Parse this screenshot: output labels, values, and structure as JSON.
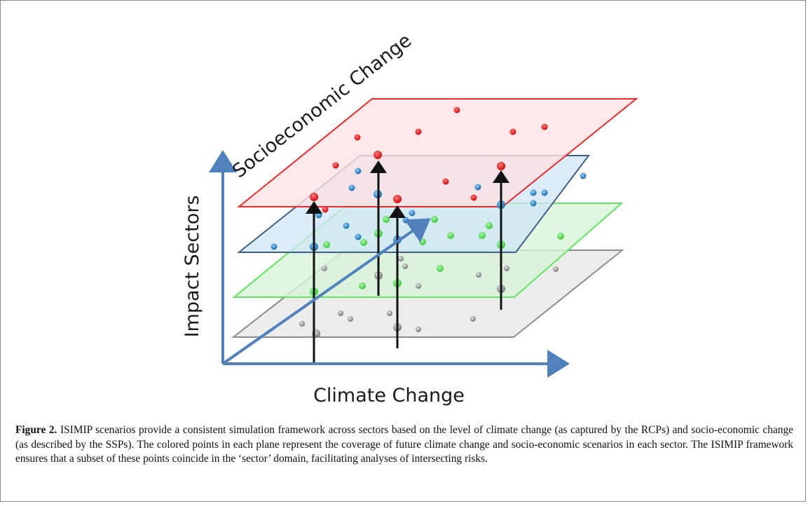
{
  "figure": {
    "axis_labels": {
      "x": "Climate Change",
      "y": "Impact Sectors",
      "z": "Socioeconomic Change"
    },
    "planes": [
      {
        "name": "gray-plane",
        "color": "#8c8c8c",
        "fill": "#e9e9e9",
        "point_color": "#9a9a9a"
      },
      {
        "name": "green-plane",
        "color": "#5ee85e",
        "fill": "#d9f4d9",
        "point_color": "#6ee06e"
      },
      {
        "name": "blue-plane",
        "color": "#3e5f8e",
        "fill": "#d7e9f6",
        "point_color": "#2f8fd3"
      },
      {
        "name": "red-plane",
        "color": "#f02a2a",
        "fill": "#fbe2e2",
        "point_color": "#ee1c1c"
      }
    ],
    "arrow_color": "#111111",
    "axis_color": "#4f81bd"
  },
  "caption": {
    "label": "Figure 2.",
    "text": " ISIMIP scenarios provide a consistent simulation framework across sectors based on the level of climate change (as captured by the RCPs) and socio-economic change (as described by the SSPs). The colored points in each plane represent the coverage of future climate change and socio-economic scenarios in each sector. The ISIMIP framework ensures that a subset of these points coincide in the ‘sector’ domain, facilitating analyses of intersecting risks."
  }
}
